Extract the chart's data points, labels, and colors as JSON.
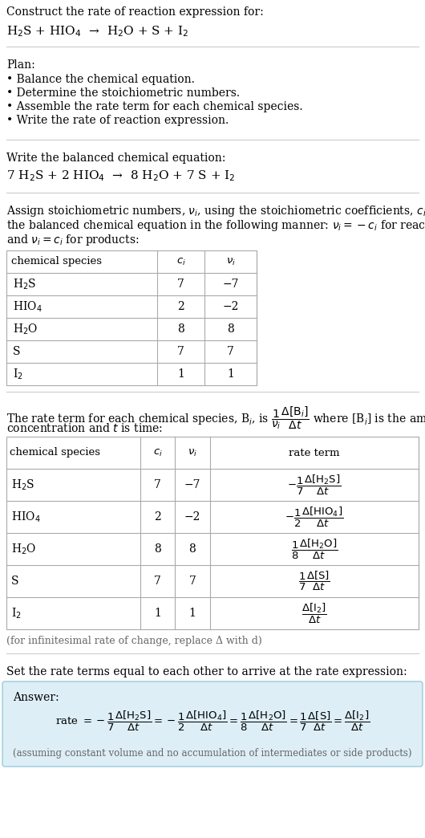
{
  "bg_color": "#ffffff",
  "text_color": "#000000",
  "gray_text": "#666666",
  "light_blue_bg": "#ddeef6",
  "title_line1": "Construct the rate of reaction expression for:",
  "title_line2": "H$_2$S + HIO$_4$  →  H$_2$O + S + I$_2$",
  "plan_header": "Plan:",
  "plan_items": [
    "• Balance the chemical equation.",
    "• Determine the stoichiometric numbers.",
    "• Assemble the rate term for each chemical species.",
    "• Write the rate of reaction expression."
  ],
  "balanced_header": "Write the balanced chemical equation:",
  "balanced_eq": "7 H$_2$S + 2 HIO$_4$  →  8 H$_2$O + 7 S + I$_2$",
  "stoich_intro_parts": [
    "Assign stoichiometric numbers, $\\nu_i$, using the stoichiometric coefficients, $c_i$, from",
    "the balanced chemical equation in the following manner: $\\nu_i = -c_i$ for reactants",
    "and $\\nu_i = c_i$ for products:"
  ],
  "table1_headers": [
    "chemical species",
    "$c_i$",
    "$\\nu_i$"
  ],
  "table1_rows": [
    [
      "H$_2$S",
      "7",
      "−7"
    ],
    [
      "HIO$_4$",
      "2",
      "−2"
    ],
    [
      "H$_2$O",
      "8",
      "8"
    ],
    [
      "S",
      "7",
      "7"
    ],
    [
      "I$_2$",
      "1",
      "1"
    ]
  ],
  "rate_intro_line1": "The rate term for each chemical species, B$_i$, is $\\dfrac{1}{\\nu_i}\\dfrac{\\Delta[\\mathrm{B}_i]}{\\Delta t}$ where [B$_i$] is the amount",
  "rate_intro_line2": "concentration and $t$ is time:",
  "table2_headers": [
    "chemical species",
    "$c_i$",
    "$\\nu_i$",
    "rate term"
  ],
  "table2_rows": [
    [
      "H$_2$S",
      "7",
      "−7",
      "$-\\dfrac{1}{7}\\dfrac{\\Delta[\\mathrm{H_2S}]}{\\Delta t}$"
    ],
    [
      "HIO$_4$",
      "2",
      "−2",
      "$-\\dfrac{1}{2}\\dfrac{\\Delta[\\mathrm{HIO_4}]}{\\Delta t}$"
    ],
    [
      "H$_2$O",
      "8",
      "8",
      "$\\dfrac{1}{8}\\dfrac{\\Delta[\\mathrm{H_2O}]}{\\Delta t}$"
    ],
    [
      "S",
      "7",
      "7",
      "$\\dfrac{1}{7}\\dfrac{\\Delta[\\mathrm{S}]}{\\Delta t}$"
    ],
    [
      "I$_2$",
      "1",
      "1",
      "$\\dfrac{\\Delta[\\mathrm{I_2}]}{\\Delta t}$"
    ]
  ],
  "infinitesimal_note": "(for infinitesimal rate of change, replace Δ with d)",
  "set_equal_text": "Set the rate terms equal to each other to arrive at the rate expression:",
  "answer_label": "Answer:",
  "rate_expression": "rate $= -\\dfrac{1}{7}\\dfrac{\\Delta[\\mathrm{H_2S}]}{\\Delta t} = -\\dfrac{1}{2}\\dfrac{\\Delta[\\mathrm{HIO_4}]}{\\Delta t} = \\dfrac{1}{8}\\dfrac{\\Delta[\\mathrm{H_2O}]}{\\Delta t} = \\dfrac{1}{7}\\dfrac{\\Delta[\\mathrm{S}]}{\\Delta t} = \\dfrac{\\Delta[\\mathrm{I_2}]}{\\Delta t}$",
  "assuming_note": "(assuming constant volume and no accumulation of intermediates or side products)"
}
